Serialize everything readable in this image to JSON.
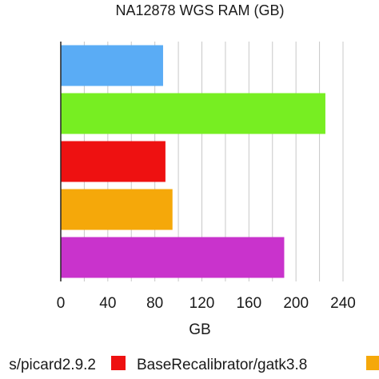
{
  "chart_data": {
    "type": "bar",
    "orientation": "horizontal",
    "title": "NA12878 WGS RAM (GB)",
    "xlabel": "GB",
    "ylabel": "",
    "xlim": [
      0,
      240
    ],
    "xticks": [
      0,
      40,
      80,
      120,
      160,
      200,
      240
    ],
    "grid": true,
    "legend_position": "bottom",
    "series": [
      {
        "values": [
          87
        ]
      },
      {
        "values": [
          225
        ]
      },
      {
        "values": [
          89
        ]
      },
      {
        "values": [
          95
        ]
      },
      {
        "values": [
          190
        ]
      }
    ],
    "colors": [
      "#5aacf5",
      "#77ee22",
      "#ee1111",
      "#f5a80a",
      "#c933cc"
    ],
    "legend": [
      {
        "label": "s/picard2.9.2",
        "color": "#ee1111"
      },
      {
        "label": "BaseRecalibrator/gatk3.8",
        "color": "#f5a80a"
      }
    ]
  }
}
